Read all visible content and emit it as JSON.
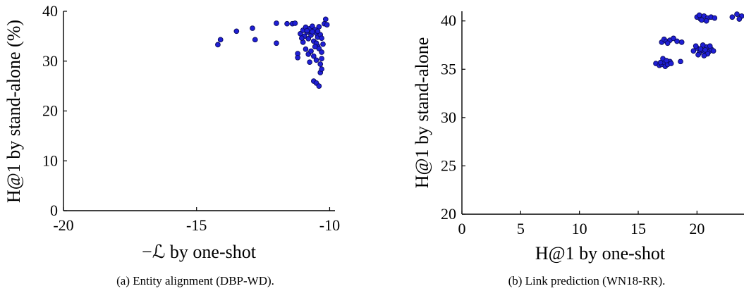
{
  "chart_data": [
    {
      "type": "scatter",
      "xlabel": "−ℒ by one-shot",
      "ylabel": "H@1 by stand-alone (%)",
      "caption": "(a) Entity alignment (DBP-WD).",
      "xlim": [
        -20,
        -9.8
      ],
      "ylim": [
        0,
        40
      ],
      "xticks": [
        -20,
        -15,
        -10
      ],
      "xtick_labels": [
        "-20",
        "-15",
        "-10"
      ],
      "yticks": [
        0,
        10,
        20,
        30,
        40
      ],
      "ytick_labels": [
        "0",
        "10",
        "20",
        "30",
        "40"
      ],
      "marker_color": "#1f1fd6",
      "points": [
        [
          -14.2,
          33.3
        ],
        [
          -14.1,
          34.3
        ],
        [
          -13.5,
          36.0
        ],
        [
          -12.9,
          36.6
        ],
        [
          -12.8,
          34.3
        ],
        [
          -12.0,
          37.6
        ],
        [
          -12.0,
          33.6
        ],
        [
          -11.6,
          37.5
        ],
        [
          -11.4,
          37.5
        ],
        [
          -11.3,
          37.6
        ],
        [
          -11.1,
          35.5
        ],
        [
          -11.0,
          36.2
        ],
        [
          -10.95,
          35.0
        ],
        [
          -10.9,
          36.8
        ],
        [
          -10.85,
          35.8
        ],
        [
          -10.8,
          34.5
        ],
        [
          -10.75,
          36.5
        ],
        [
          -10.7,
          35.2
        ],
        [
          -10.65,
          37.0
        ],
        [
          -10.6,
          34.0
        ],
        [
          -10.55,
          36.3
        ],
        [
          -10.5,
          35.6
        ],
        [
          -10.45,
          34.8
        ],
        [
          -10.4,
          36.9
        ],
        [
          -10.35,
          35.3
        ],
        [
          -11.2,
          31.5
        ],
        [
          -11.2,
          30.7
        ],
        [
          -11.0,
          33.8
        ],
        [
          -10.9,
          32.4
        ],
        [
          -10.8,
          31.4
        ],
        [
          -10.75,
          29.8
        ],
        [
          -10.7,
          32.0
        ],
        [
          -10.6,
          31.0
        ],
        [
          -10.5,
          30.2
        ],
        [
          -10.45,
          33.0
        ],
        [
          -10.4,
          32.5
        ],
        [
          -10.35,
          29.4
        ],
        [
          -10.3,
          31.8
        ],
        [
          -10.3,
          30.5
        ],
        [
          -10.25,
          33.4
        ],
        [
          -10.2,
          37.5
        ],
        [
          -10.15,
          38.4
        ],
        [
          -10.1,
          37.3
        ],
        [
          -10.6,
          26.0
        ],
        [
          -10.5,
          25.6
        ],
        [
          -10.4,
          25.0
        ],
        [
          -10.35,
          27.7
        ],
        [
          -10.3,
          28.4
        ],
        [
          -10.5,
          33.6
        ],
        [
          -10.55,
          32.9
        ],
        [
          -10.85,
          36.1
        ],
        [
          -11.05,
          34.6
        ],
        [
          -10.65,
          35.9
        ],
        [
          -10.45,
          36.0
        ],
        [
          -10.3,
          34.6
        ]
      ]
    },
    {
      "type": "scatter",
      "xlabel": "H@1 by one-shot",
      "ylabel": "H@1 by stand-alone",
      "caption": "(b) Link prediction (WN18-RR).",
      "xlim": [
        0,
        24
      ],
      "ylim": [
        20,
        41
      ],
      "xticks": [
        0,
        5,
        10,
        15,
        20
      ],
      "xtick_labels": [
        "0",
        "5",
        "10",
        "15",
        "20"
      ],
      "yticks": [
        20,
        25,
        30,
        35,
        40
      ],
      "ytick_labels": [
        "20",
        "25",
        "30",
        "35",
        "40"
      ],
      "marker_color": "#1f1fd6",
      "points": [
        [
          16.5,
          35.6
        ],
        [
          16.8,
          35.4
        ],
        [
          17.0,
          35.5
        ],
        [
          17.2,
          35.7
        ],
        [
          17.3,
          35.3
        ],
        [
          17.5,
          35.5
        ],
        [
          17.7,
          35.8
        ],
        [
          17.1,
          36.1
        ],
        [
          17.4,
          35.9
        ],
        [
          16.9,
          35.7
        ],
        [
          17.8,
          35.6
        ],
        [
          18.6,
          35.8
        ],
        [
          17.0,
          37.8
        ],
        [
          17.2,
          38.1
        ],
        [
          17.4,
          37.9
        ],
        [
          17.7,
          38.0
        ],
        [
          18.0,
          38.2
        ],
        [
          18.3,
          37.9
        ],
        [
          18.7,
          37.8
        ],
        [
          17.5,
          37.7
        ],
        [
          19.7,
          36.9
        ],
        [
          20.0,
          37.2
        ],
        [
          20.2,
          36.7
        ],
        [
          20.4,
          37.0
        ],
        [
          20.6,
          36.9
        ],
        [
          20.8,
          37.3
        ],
        [
          21.0,
          36.8
        ],
        [
          21.2,
          37.1
        ],
        [
          20.1,
          36.5
        ],
        [
          20.5,
          37.5
        ],
        [
          20.9,
          36.6
        ],
        [
          20.3,
          37.1
        ],
        [
          20.7,
          37.0
        ],
        [
          21.4,
          36.9
        ],
        [
          19.9,
          37.4
        ],
        [
          20.6,
          36.4
        ],
        [
          21.1,
          37.4
        ],
        [
          20.0,
          40.4
        ],
        [
          20.3,
          40.2
        ],
        [
          20.6,
          40.5
        ],
        [
          20.9,
          40.3
        ],
        [
          21.2,
          40.4
        ],
        [
          20.4,
          40.1
        ],
        [
          20.8,
          40.0
        ],
        [
          21.5,
          40.3
        ],
        [
          20.2,
          40.6
        ],
        [
          23.0,
          40.4
        ],
        [
          23.4,
          40.7
        ],
        [
          23.8,
          40.5
        ],
        [
          23.6,
          40.2
        ]
      ]
    }
  ]
}
